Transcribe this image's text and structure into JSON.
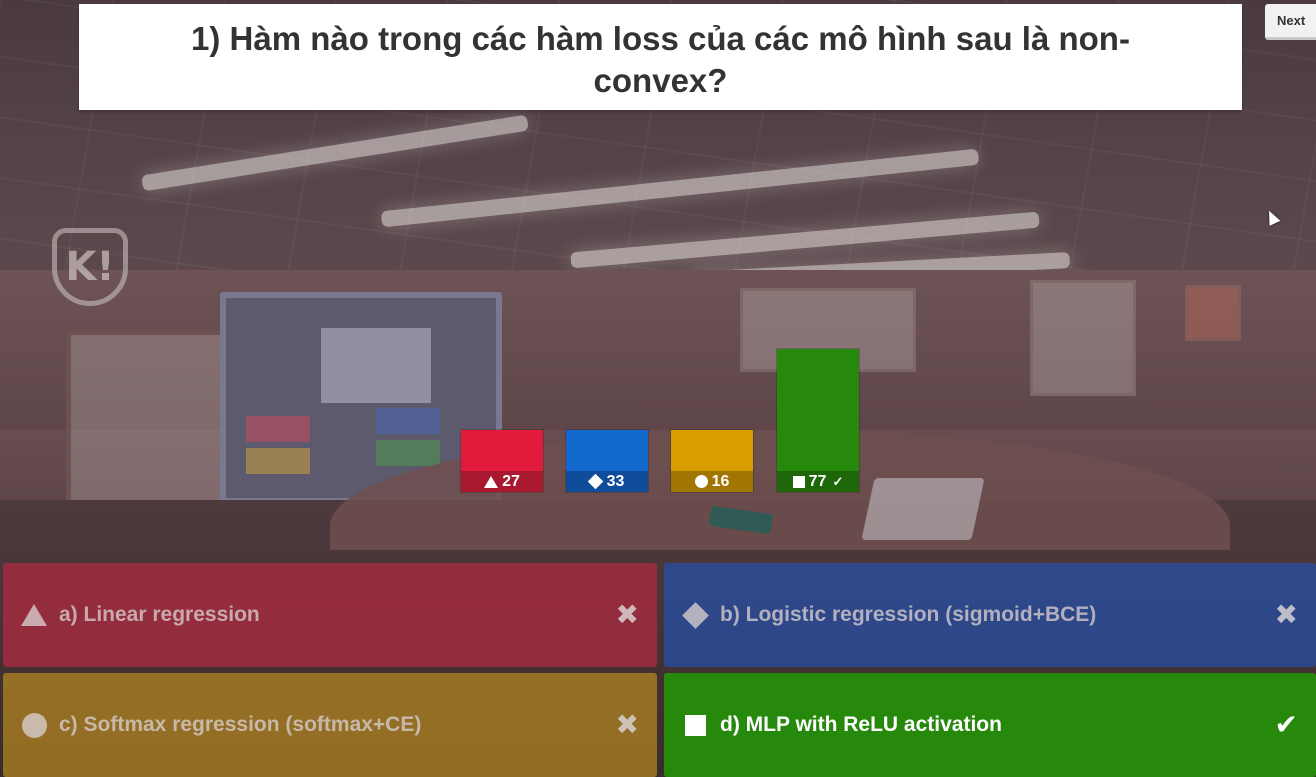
{
  "question": {
    "text": "1) Hàm nào trong các hàm loss của các mô hình sau là non-convex?"
  },
  "controls": {
    "next_label": "Next"
  },
  "chart_data": {
    "type": "bar",
    "categories": [
      "a",
      "b",
      "c",
      "d"
    ],
    "values": [
      27,
      33,
      16,
      77
    ],
    "colors": [
      "#e21b3c",
      "#1368ce",
      "#d89e00",
      "#26890c"
    ],
    "correct_index": 3,
    "ylim": [
      0,
      77
    ]
  },
  "results": [
    {
      "shape": "triangle-icon",
      "count": "27",
      "check": ""
    },
    {
      "shape": "diamond-icon",
      "count": "33",
      "check": ""
    },
    {
      "shape": "circle-icon",
      "count": "16",
      "check": ""
    },
    {
      "shape": "square-icon",
      "count": "77",
      "check": "✓"
    }
  ],
  "answers": [
    {
      "label": "a) Linear regression",
      "shape": "triangle-icon",
      "status": "✖",
      "correct": false
    },
    {
      "label": "b) Logistic regression (sigmoid+BCE)",
      "shape": "diamond-icon",
      "status": "✖",
      "correct": false
    },
    {
      "label": "c) Softmax regression (softmax+CE)",
      "shape": "circle-icon",
      "status": "✖",
      "correct": false
    },
    {
      "label": "d) MLP with ReLU activation",
      "shape": "square-icon",
      "status": "✔",
      "correct": true
    }
  ]
}
